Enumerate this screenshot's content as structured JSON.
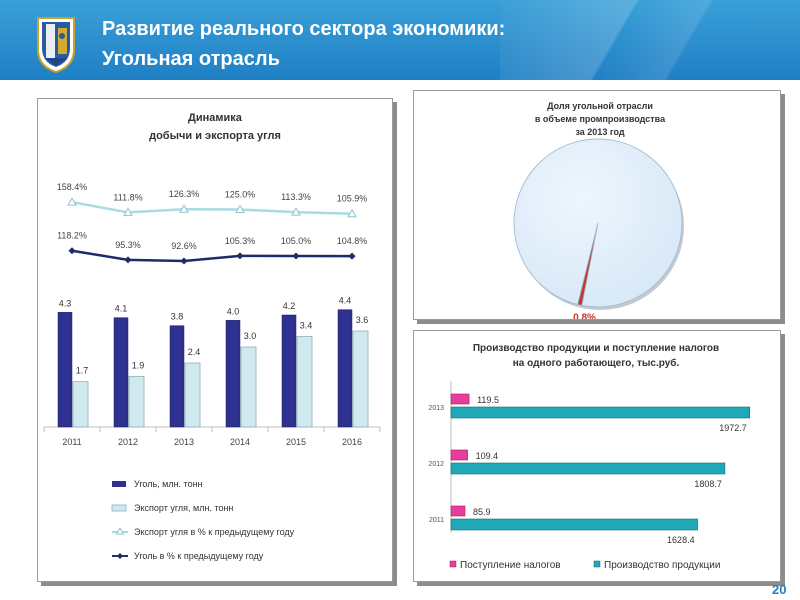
{
  "header": {
    "title_line1": "Развитие реального сектора экономики:",
    "title_line2": "Угольная отрасль"
  },
  "page_number": "20",
  "colors": {
    "header_blue": "#1f7fc4",
    "coal_bar": "#2e318f",
    "export_bar": "#cfe9ef",
    "export_pct_line": "#a9dbe3",
    "coal_pct_line": "#1d2a6b",
    "pie_main": "#d7e8f7",
    "pie_slice": "#c0392b",
    "tax_bar": "#e83e9b",
    "prod_bar": "#1fa9b7"
  },
  "chart_data": [
    {
      "type": "bar",
      "title": "Динамика\nдобычи и экспорта угля",
      "title_lines": [
        "Динамика",
        "добычи и экспорта угля"
      ],
      "categories": [
        "2011",
        "2012",
        "2013",
        "2014",
        "2015",
        "2016"
      ],
      "series": [
        {
          "name": "Уголь, млн. тонн",
          "kind": "bar",
          "values": [
            4.3,
            4.1,
            3.8,
            4.0,
            4.2,
            4.4
          ],
          "labels": [
            "4.3",
            "4.1",
            "3.8",
            "4.0",
            "4.2",
            "4.4"
          ]
        },
        {
          "name": "Экспорт угля, млн. тонн",
          "kind": "bar",
          "values": [
            1.7,
            1.9,
            2.4,
            3.0,
            3.4,
            3.6
          ],
          "labels": [
            "1.7",
            "1.9",
            "2.4",
            "3.0",
            "3.4",
            "3.6"
          ]
        },
        {
          "name": "Экспорт угля в % к предыдущему году",
          "kind": "line",
          "marker": "triangle",
          "values": [
            158.4,
            111.8,
            126.3,
            125.0,
            113.3,
            105.9
          ],
          "labels": [
            "158.4%",
            "111.8%",
            "126.3%",
            "125.0%",
            "113.3%",
            "105.9%"
          ]
        },
        {
          "name": "Уголь в % к предыдущему году",
          "kind": "line",
          "marker": "diamond",
          "values": [
            118.2,
            95.3,
            92.6,
            105.3,
            105.0,
            104.8
          ],
          "labels": [
            "118.2%",
            "95.3%",
            "92.6%",
            "105.3%",
            "105.0%",
            "104.8%"
          ]
        }
      ],
      "ylim": [
        0,
        4.8
      ],
      "legend": "bottom",
      "grid": false
    },
    {
      "type": "pie",
      "title": "Доля угольной отрасли\nв объеме промпроизводства\nза 2013 год",
      "title_lines": [
        "Доля угольной отрасли",
        "в объеме промпроизводства",
        "за 2013 год"
      ],
      "slices": [
        {
          "value": 99.2
        },
        {
          "value": 0.8,
          "label": "0.8%"
        }
      ],
      "legend": "none"
    },
    {
      "type": "bar",
      "orientation": "horizontal",
      "title": "Производство продукции и поступление налогов\nна одного работающего, тыс.руб.",
      "title_lines": [
        "Производство продукции и поступление налогов",
        "на одного работающего, тыс.руб."
      ],
      "categories": [
        "2013",
        "2012",
        "2011"
      ],
      "series": [
        {
          "name": "Поступление налогов",
          "values": [
            119.5,
            109.4,
            85.9
          ],
          "labels": [
            "119.5",
            "109.4",
            "85.9"
          ]
        },
        {
          "name": "Производство продукции",
          "values": [
            1972.7,
            1808.7,
            1628.4
          ],
          "labels": [
            "1972.7",
            "1808.7",
            "1628.4"
          ]
        }
      ],
      "xlim": [
        0,
        2100
      ],
      "legend": "bottom",
      "grid": false
    }
  ]
}
